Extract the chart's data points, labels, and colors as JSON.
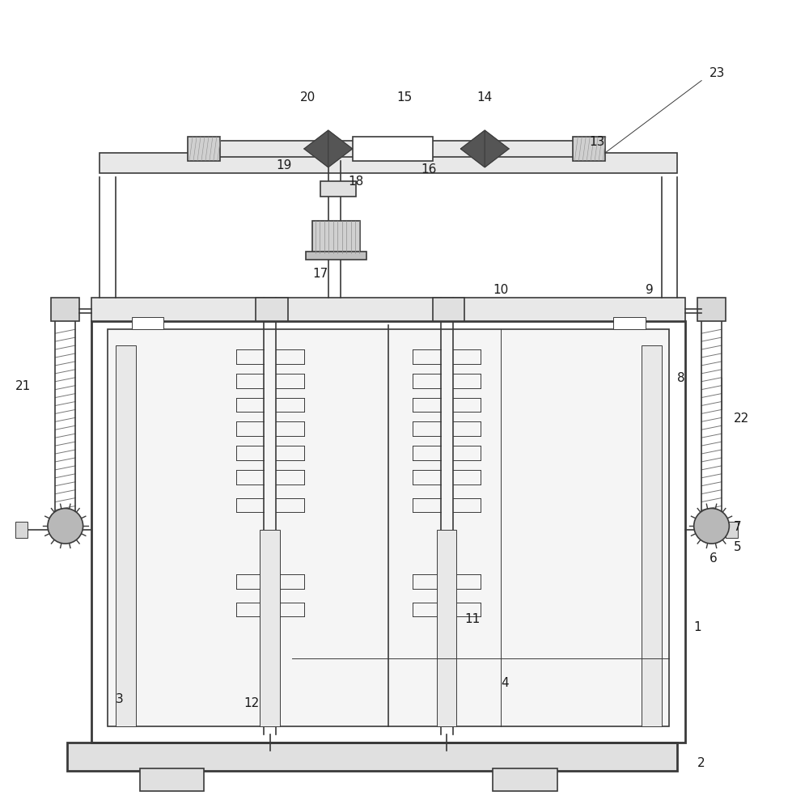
{
  "bg_color": "#ffffff",
  "line_color": "#3a3a3a",
  "label_color": "#1a1a1a",
  "label_fontsize": 11,
  "fig_width": 10.0,
  "fig_height": 9.95
}
